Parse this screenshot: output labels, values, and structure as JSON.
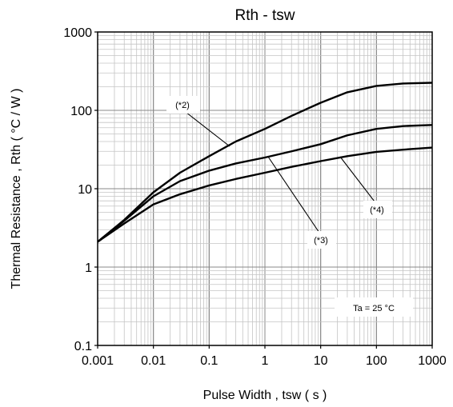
{
  "chart_data": {
    "type": "line",
    "title": "Rth - tsw",
    "xlabel": "Pulse Width , tsw ( s )",
    "ylabel": "Thermal Resistance , Rth ( °C / W )",
    "x_scale": "log",
    "y_scale": "log",
    "xlim": [
      0.001,
      1000
    ],
    "ylim": [
      0.1,
      1000
    ],
    "x_ticks": [
      {
        "value": 0.001,
        "label": "0.001"
      },
      {
        "value": 0.01,
        "label": "0.01"
      },
      {
        "value": 0.1,
        "label": "0.1"
      },
      {
        "value": 1,
        "label": "1"
      },
      {
        "value": 10,
        "label": "10"
      },
      {
        "value": 100,
        "label": "100"
      },
      {
        "value": 1000,
        "label": "1000"
      }
    ],
    "y_ticks": [
      {
        "value": 0.1,
        "label": "0.1"
      },
      {
        "value": 1,
        "label": "1"
      },
      {
        "value": 10,
        "label": "10"
      },
      {
        "value": 100,
        "label": "100"
      },
      {
        "value": 1000,
        "label": "1000"
      }
    ],
    "grid": true,
    "series": [
      {
        "name": "(*2)",
        "points": [
          [
            0.001,
            2.1
          ],
          [
            0.003,
            4.0
          ],
          [
            0.01,
            9.0
          ],
          [
            0.03,
            16.0
          ],
          [
            0.1,
            26.0
          ],
          [
            0.3,
            40.0
          ],
          [
            1,
            58.0
          ],
          [
            3,
            85.0
          ],
          [
            10,
            125.0
          ],
          [
            30,
            170.0
          ],
          [
            100,
            205.0
          ],
          [
            300,
            220.0
          ],
          [
            1000,
            225.0
          ]
        ]
      },
      {
        "name": "(*3)",
        "points": [
          [
            0.001,
            2.1
          ],
          [
            0.003,
            3.9
          ],
          [
            0.01,
            8.0
          ],
          [
            0.03,
            12.5
          ],
          [
            0.1,
            17.0
          ],
          [
            0.3,
            21.0
          ],
          [
            1,
            25.0
          ],
          [
            3,
            30.0
          ],
          [
            10,
            37.0
          ],
          [
            30,
            48.0
          ],
          [
            100,
            58.0
          ],
          [
            300,
            63.0
          ],
          [
            1000,
            65.0
          ]
        ]
      },
      {
        "name": "(*4)",
        "points": [
          [
            0.001,
            2.1
          ],
          [
            0.003,
            3.6
          ],
          [
            0.01,
            6.3
          ],
          [
            0.03,
            8.5
          ],
          [
            0.1,
            11.0
          ],
          [
            0.3,
            13.3
          ],
          [
            1,
            16.0
          ],
          [
            3,
            19.0
          ],
          [
            10,
            22.5
          ],
          [
            30,
            26.0
          ],
          [
            100,
            29.5
          ],
          [
            300,
            31.5
          ],
          [
            1000,
            33.5
          ]
        ]
      }
    ],
    "annotations": [
      {
        "text": "(*2)",
        "series": 0
      },
      {
        "text": "(*3)",
        "series": 1
      },
      {
        "text": "(*4)",
        "series": 2
      }
    ],
    "condition": "Ta = 25 °C"
  }
}
